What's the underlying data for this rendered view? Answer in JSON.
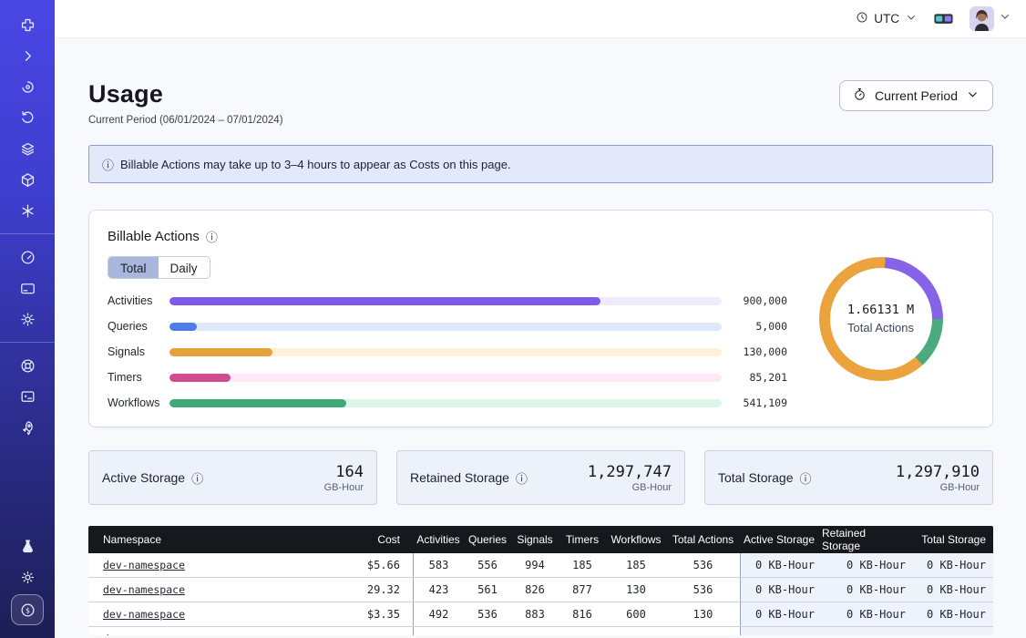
{
  "topbar": {
    "timezone_label": "UTC",
    "icons": [
      "clock-icon",
      "chevron-down-icon",
      "3d-glasses-icon",
      "avatar"
    ]
  },
  "header": {
    "title": "Usage",
    "subtitle": "Current Period (06/01/2024 – 07/01/2024)",
    "period_button_label": "Current Period"
  },
  "banner": {
    "info_glyph": "ⓘ",
    "text": "Billable Actions may take up to 3–4 hours to appear as Costs on this page."
  },
  "billable_card": {
    "title": "Billable Actions",
    "info_glyph": "ⓘ",
    "tabs": [
      {
        "label": "Total",
        "selected": true
      },
      {
        "label": "Daily",
        "selected": false
      }
    ]
  },
  "chart_data": {
    "type": "bar",
    "orientation": "horizontal",
    "title": "Billable Actions",
    "categories": [
      "Activities",
      "Queries",
      "Signals",
      "Timers",
      "Workflows"
    ],
    "values": [
      900000,
      5000,
      130000,
      85201,
      541109
    ],
    "value_labels": [
      "900,000",
      "5,000",
      "130,000",
      "85,201",
      "541,109"
    ],
    "bar_fill_pct": [
      78,
      5,
      18.7,
      11,
      32
    ],
    "bar_colors": [
      "#7e5be4",
      "#4e7ce8",
      "#e6a13b",
      "#d24b8c",
      "#41a877"
    ],
    "track_colors": [
      "#f0ebfc",
      "#dfe8fa",
      "#fdf2d7",
      "#fbe9f6",
      "#dcf6e8"
    ],
    "donut": {
      "type": "donut",
      "center_value": "1.66131 M",
      "center_label": "Total Actions",
      "segments": [
        {
          "name": "activities",
          "color": "#8763e8",
          "start_deg": 4,
          "end_deg": 90
        },
        {
          "name": "workflows",
          "color": "#4cab7e",
          "start_deg": 90,
          "end_deg": 138
        },
        {
          "name": "signals",
          "color": "#eba33e",
          "start_deg": 138,
          "end_deg": 364
        }
      ]
    }
  },
  "storage_cards": [
    {
      "label": "Active Storage",
      "info_glyph": "ⓘ",
      "value": "164",
      "unit": "GB-Hour"
    },
    {
      "label": "Retained Storage",
      "info_glyph": "ⓘ",
      "value": "1,297,747",
      "unit": "GB-Hour"
    },
    {
      "label": "Total Storage",
      "info_glyph": "ⓘ",
      "value": "1,297,910",
      "unit": "GB-Hour"
    }
  ],
  "table": {
    "columns": [
      "Namespace",
      "Cost",
      "Activities",
      "Queries",
      "Signals",
      "Timers",
      "Workflows",
      "Total Actions",
      "Active Storage",
      "Retained Storage",
      "Total Storage"
    ],
    "rows": [
      {
        "namespace": "dev-namespace",
        "cost": "$5.66",
        "activities": "583",
        "queries": "556",
        "signals": "994",
        "timers": "185",
        "workflows": "185",
        "total_actions": "536",
        "active_storage": "0 KB-Hour",
        "retained_storage": "0 KB-Hour",
        "total_storage": "0 KB-Hour"
      },
      {
        "namespace": "dev-namespace",
        "cost": "29.32",
        "activities": "423",
        "queries": "561",
        "signals": "826",
        "timers": "877",
        "workflows": "130",
        "total_actions": "536",
        "active_storage": "0 KB-Hour",
        "retained_storage": "0 KB-Hour",
        "total_storage": "0 KB-Hour"
      },
      {
        "namespace": "dev-namespace",
        "cost": "$3.35",
        "activities": "492",
        "queries": "536",
        "signals": "883",
        "timers": "816",
        "workflows": "600",
        "total_actions": "130",
        "active_storage": "0 KB-Hour",
        "retained_storage": "0 KB-Hour",
        "total_storage": "0 KB-Hour"
      },
      {
        "namespace": "dev-namespace",
        "cost": "",
        "activities": "",
        "queries": "",
        "signals": "",
        "timers": "",
        "workflows": "",
        "total_actions": "",
        "active_storage": "",
        "retained_storage": "",
        "total_storage": ""
      }
    ]
  },
  "sidebar_icons": [
    "temporal-logo-icon",
    "chevron-right-icon",
    "namespaces-icon",
    "history-icon",
    "layers-icon",
    "package-icon",
    "nexus-asterisk-icon",
    "usage-gauge-icon",
    "billing-card-icon",
    "settings-gear-icon",
    "support-lifebuoy-icon",
    "docs-monitor-icon",
    "rocket-icon",
    "labs-flask-icon",
    "theme-sun-icon",
    "usage-dollar-icon"
  ]
}
